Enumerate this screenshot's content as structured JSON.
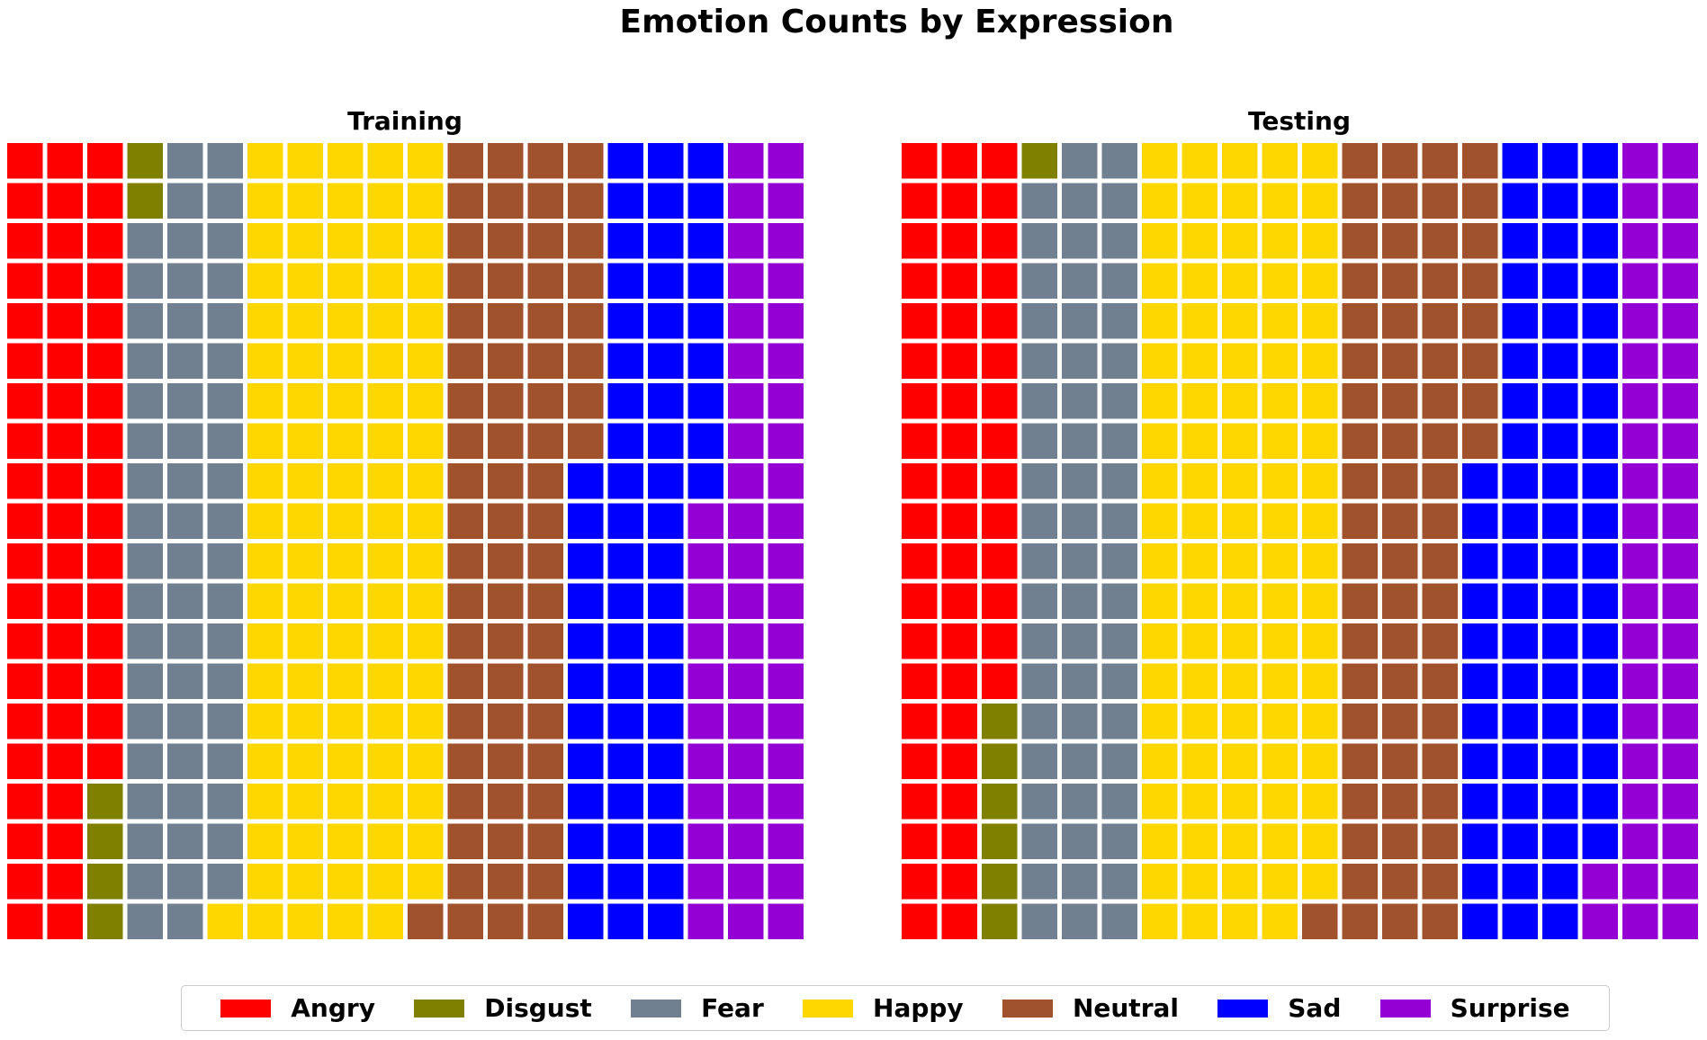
{
  "chart_data": [
    {
      "type": "waffle",
      "title": "Training",
      "rows": 20,
      "columns": 20,
      "fill_order": "column-major, top-to-bottom",
      "categories": [
        "Angry",
        "Disgust",
        "Fear",
        "Happy",
        "Neutral",
        "Sad",
        "Surprise"
      ],
      "values": [
        56,
        6,
        57,
        100,
        69,
        61,
        51
      ]
    },
    {
      "type": "waffle",
      "title": "Testing",
      "rows": 20,
      "columns": 20,
      "fill_order": "column-major, top-to-bottom",
      "categories": [
        "Angry",
        "Disgust",
        "Fear",
        "Happy",
        "Neutral",
        "Sad",
        "Surprise"
      ],
      "values": [
        54,
        7,
        59,
        99,
        69,
        70,
        42
      ]
    }
  ],
  "figure": {
    "title": "Emotion Counts by Expression"
  },
  "legend": {
    "placement": "bottom-center",
    "items": [
      {
        "label": "Angry",
        "color": "#ff0000"
      },
      {
        "label": "Disgust",
        "color": "#808000"
      },
      {
        "label": "Fear",
        "color": "#708090"
      },
      {
        "label": "Happy",
        "color": "#ffd700"
      },
      {
        "label": "Neutral",
        "color": "#a0522d"
      },
      {
        "label": "Sad",
        "color": "#0000ff"
      },
      {
        "label": "Surprise",
        "color": "#9400d3"
      }
    ]
  }
}
